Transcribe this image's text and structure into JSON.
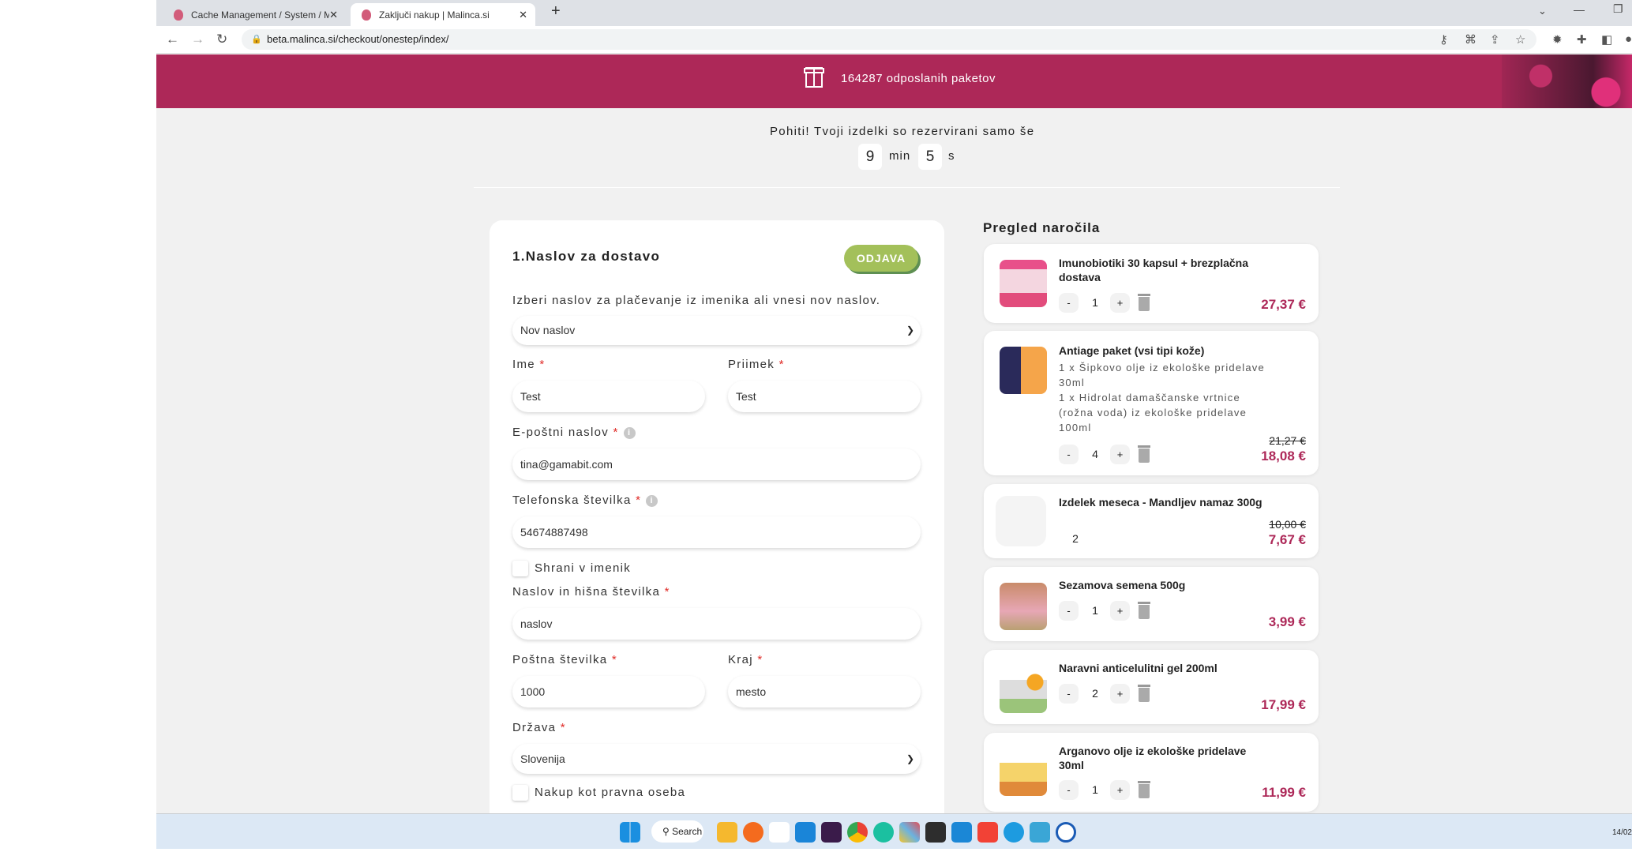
{
  "browser": {
    "tabs": [
      {
        "label": "Cache Management / System / M"
      },
      {
        "label": "Zaključi nakup | Malinca.si"
      }
    ],
    "url": "beta.malinca.si/checkout/onestep/index/"
  },
  "banner": {
    "text": "164287 odposlanih paketov",
    "icon": "gift-icon",
    "color": "#ad2858"
  },
  "timer": {
    "message": "Pohiti! Tvoji izdelki so rezervirani samo še",
    "minutes": "9",
    "min_label": "min",
    "seconds": "5",
    "sec_label": "s"
  },
  "form": {
    "title": "1.Naslov za dostavo",
    "logout_label": "ODJAVA",
    "helper": "Izberi naslov za plačevanje iz imenika ali vnesi nov naslov.",
    "address_select": "Nov naslov",
    "first_name_label": "Ime",
    "first_name": "Test",
    "last_name_label": "Priimek",
    "last_name": "Test",
    "email_label": "E-poštni naslov",
    "email": "tina@gamabit.com",
    "phone_label": "Telefonska številka",
    "phone": "54674887498",
    "save_label": "Shrani v imenik",
    "street_label": "Naslov in hišna številka",
    "street": "naslov",
    "zip_label": "Poštna številka",
    "zip": "1000",
    "city_label": "Kraj",
    "city": "mesto",
    "country_label": "Država",
    "country": "Slovenija",
    "company_label": "Nakup kot pravna oseba",
    "required_mark": "*",
    "accent": "#a3c05a"
  },
  "summary": {
    "title": "Pregled naročila",
    "items": [
      {
        "name": "Imunobiotiki 30 kapsul + brezplačna dostava",
        "qty": "1",
        "price": "27,37 €"
      },
      {
        "name": "Antiage paket (vsi tipi kože)",
        "options": [
          "1 x Šipkovo olje iz ekološke pridelave 30ml",
          "1 x Hidrolat damaščanske vrtnice (rožna voda) iz ekološke pridelave 100ml"
        ],
        "qty": "4",
        "old_price": "21,27 €",
        "price": "18,08 €"
      },
      {
        "name": "Izdelek meseca - Mandljev namaz 300g",
        "qty": "2",
        "old_price": "10,00 €",
        "price": "7,67 €"
      },
      {
        "name": "Sezamova semena 500g",
        "qty": "1",
        "price": "3,99 €"
      },
      {
        "name": "Naravni anticelulitni gel 200ml",
        "qty": "2",
        "price": "17,99 €"
      },
      {
        "name": "Arganovo olje iz ekološke pridelave 30ml",
        "qty": "1",
        "price": "11,99 €"
      }
    ],
    "minus": "-",
    "plus": "+"
  },
  "taskbar": {
    "search": "Search",
    "date": "14/02"
  }
}
